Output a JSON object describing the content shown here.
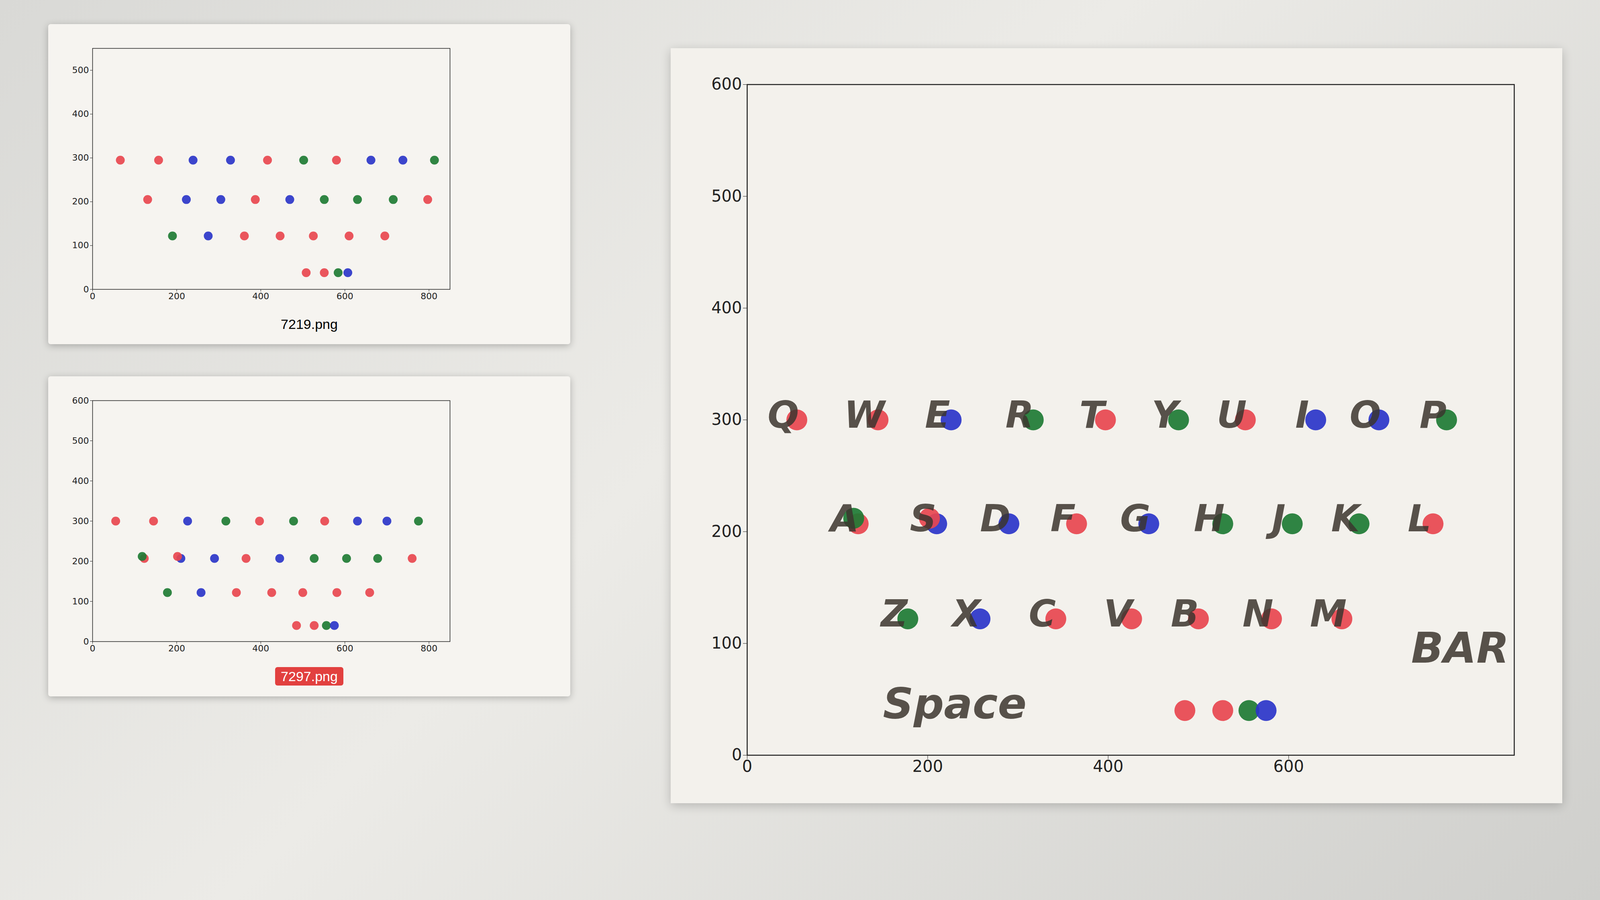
{
  "chart_data": [
    {
      "type": "scatter",
      "title": "7219.png",
      "x": [
        66,
        157,
        239,
        328,
        416,
        502,
        580,
        662,
        738,
        813,
        131,
        223,
        305,
        387,
        469,
        551,
        630,
        715,
        797,
        190,
        275,
        361,
        446,
        525,
        610,
        695,
        508,
        551,
        584,
        607
      ],
      "values": [
        295,
        295,
        295,
        295,
        295,
        295,
        295,
        295,
        295,
        295,
        205,
        205,
        205,
        205,
        205,
        205,
        205,
        205,
        205,
        122,
        122,
        122,
        122,
        122,
        122,
        122,
        38,
        38,
        38,
        38
      ],
      "colors": [
        "#e8474f",
        "#e8474f",
        "#2b35c9",
        "#2b35c9",
        "#e8474f",
        "#1e7b34",
        "#e8474f",
        "#2b35c9",
        "#2b35c9",
        "#1e7b34",
        "#e8474f",
        "#2b35c9",
        "#2b35c9",
        "#e8474f",
        "#2b35c9",
        "#1e7b34",
        "#1e7b34",
        "#1e7b34",
        "#e8474f",
        "#1e7b34",
        "#2b35c9",
        "#e8474f",
        "#e8474f",
        "#e8474f",
        "#e8474f",
        "#e8474f",
        "#e8474f",
        "#e8474f",
        "#1e7b34",
        "#2b35c9"
      ],
      "xlim": [
        0,
        850
      ],
      "ylim": [
        0,
        550
      ],
      "xticks": [
        0,
        200,
        400,
        600,
        800
      ],
      "yticks": [
        0,
        100,
        200,
        300,
        400,
        500
      ]
    },
    {
      "type": "scatter",
      "title": "7297.png",
      "x": [
        55,
        145,
        226,
        317,
        397,
        478,
        552,
        630,
        700,
        775,
        123,
        118,
        210,
        202,
        290,
        365,
        445,
        527,
        604,
        678,
        760,
        178,
        258,
        342,
        426,
        500,
        581,
        659,
        485,
        527,
        556,
        575
      ],
      "values": [
        300,
        300,
        300,
        300,
        300,
        300,
        300,
        300,
        300,
        300,
        207,
        212,
        207,
        212,
        207,
        207,
        207,
        207,
        207,
        207,
        207,
        122,
        122,
        122,
        122,
        122,
        122,
        122,
        40,
        40,
        40,
        40
      ],
      "colors": [
        "#e8474f",
        "#e8474f",
        "#2b35c9",
        "#1e7b34",
        "#e8474f",
        "#1e7b34",
        "#e8474f",
        "#2b35c9",
        "#2b35c9",
        "#1e7b34",
        "#e8474f",
        "#1e7b34",
        "#2b35c9",
        "#e8474f",
        "#2b35c9",
        "#e8474f",
        "#2b35c9",
        "#1e7b34",
        "#1e7b34",
        "#1e7b34",
        "#e8474f",
        "#1e7b34",
        "#2b35c9",
        "#e8474f",
        "#e8474f",
        "#e8474f",
        "#e8474f",
        "#e8474f",
        "#e8474f",
        "#e8474f",
        "#1e7b34",
        "#2b35c9"
      ],
      "xlim": [
        0,
        850
      ],
      "ylim": [
        0,
        600
      ],
      "xticks": [
        0,
        200,
        400,
        600,
        800
      ],
      "yticks": [
        0,
        100,
        200,
        300,
        400,
        500,
        600
      ]
    },
    {
      "type": "scatter",
      "x": [
        55,
        145,
        226,
        317,
        397,
        478,
        552,
        630,
        700,
        775,
        123,
        118,
        210,
        202,
        290,
        365,
        445,
        527,
        604,
        678,
        760,
        178,
        258,
        342,
        426,
        500,
        581,
        659,
        485,
        527,
        556,
        575
      ],
      "values": [
        300,
        300,
        300,
        300,
        300,
        300,
        300,
        300,
        300,
        300,
        207,
        212,
        207,
        212,
        207,
        207,
        207,
        207,
        207,
        207,
        207,
        122,
        122,
        122,
        122,
        122,
        122,
        122,
        40,
        40,
        40,
        40
      ],
      "colors": [
        "#e8474f",
        "#e8474f",
        "#2b35c9",
        "#1e7b34",
        "#e8474f",
        "#1e7b34",
        "#e8474f",
        "#2b35c9",
        "#2b35c9",
        "#1e7b34",
        "#e8474f",
        "#1e7b34",
        "#2b35c9",
        "#e8474f",
        "#2b35c9",
        "#e8474f",
        "#2b35c9",
        "#1e7b34",
        "#1e7b34",
        "#1e7b34",
        "#e8474f",
        "#1e7b34",
        "#2b35c9",
        "#e8474f",
        "#e8474f",
        "#e8474f",
        "#e8474f",
        "#e8474f",
        "#e8474f",
        "#e8474f",
        "#1e7b34",
        "#2b35c9"
      ],
      "labels": [
        "Q",
        "W",
        "E",
        "R",
        "T",
        "Y",
        "U",
        "I",
        "O",
        "P",
        "A",
        null,
        "S",
        null,
        "D",
        "F",
        "G",
        "H",
        "J",
        "K",
        "L",
        "Z",
        "X",
        "C",
        "V",
        "B",
        "N",
        "M",
        null,
        null,
        null,
        null
      ],
      "annotations": [
        {
          "text": "Space",
          "x": 230,
          "y": 45
        },
        {
          "text": "BAR",
          "x": 790,
          "y": 95
        }
      ],
      "xlim": [
        0,
        850
      ],
      "ylim": [
        0,
        600
      ],
      "xticks": [
        0,
        200,
        400,
        600
      ],
      "yticks": [
        0,
        100,
        200,
        300,
        400,
        500,
        600
      ]
    }
  ]
}
